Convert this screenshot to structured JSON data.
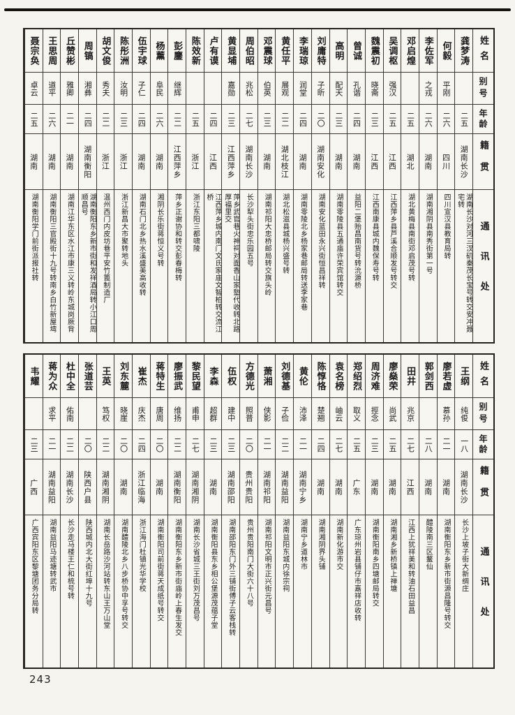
{
  "page_number": "243",
  "row_headers": [
    "姓名",
    "别号",
    "年龄",
    "籍贯",
    "通讯处"
  ],
  "tables": [
    {
      "people": [
        {
          "name": "龚梦涛",
          "alias": "",
          "age": "二五",
          "native": "湖南长沙",
          "address": "湖南长沙对河三汊矶秦茂长宝号转交安冲聂宅转"
        },
        {
          "name": "何毅",
          "alias": "平刚",
          "age": "二六",
          "native": "四川",
          "address": "四川宣汉县教育局转"
        },
        {
          "name": "李佐军",
          "alias": "之戎",
          "age": "二六",
          "native": "湖南",
          "address": "湖南湘阴县南秀街第一号"
        },
        {
          "name": "邓启煌",
          "alias": "",
          "age": "二五",
          "native": "湖北",
          "address": "湖北黄梅县南街邓启茂号转"
        },
        {
          "name": "吴调枢",
          "alias": "强汉",
          "age": "二五",
          "native": "江西",
          "address": "江西萍乡县芦溪合顺发号转交"
        },
        {
          "name": "魏震初",
          "alias": "晓斋",
          "age": "二三",
          "native": "江西",
          "address": "江西南康县城内魏保寿号转"
        },
        {
          "name": "曾诚",
          "alias": "孔谐",
          "age": "二四",
          "native": "湖南",
          "address": "益阳二堡贻昌南货号转沇源桥"
        },
        {
          "name": "高明",
          "alias": "配天",
          "age": "二三",
          "native": "湖南",
          "address": "湖南零陵县五通庙许荣宾馆转交"
        },
        {
          "name": "刘庸特",
          "alias": "子昕",
          "age": "二〇",
          "native": "湖南安化",
          "address": "湖南安化蓝田永兴街恒昌祥转"
        },
        {
          "name": "李瑞琼",
          "alias": "润堂",
          "age": "二四",
          "native": "湖南",
          "address": "湖南零陵北乡杨家巷邮局转送李家巷"
        },
        {
          "name": "黄任平",
          "alias": "展观",
          "age": "二二",
          "native": "湖北枝江",
          "address": "湖北松滋县城杨兴盛号转"
        },
        {
          "name": "邓震球",
          "alias": "伯英",
          "age": "二三",
          "native": "湖南",
          "address": "湖南祁阳大忠桥邮局转交旗头岭"
        },
        {
          "name": "周伯昭",
          "alias": "兆松",
          "age": "二七",
          "native": "湖南长沙",
          "address": "长沙犁头街忠乐园五号"
        },
        {
          "name": "黄显埔",
          "alias": "嘉勋",
          "age": "二三",
          "native": "江西萍乡",
          "address": "萍乡武官巷火神祠对面香山家塾代收转北路厚福里交"
        },
        {
          "name": "卢有谟",
          "alias": "",
          "age": "二四",
          "native": "江西",
          "address": "江西萍乡城内南门文氏家庙文智柏转交流江桥"
        },
        {
          "name": "陈效新",
          "alias": "",
          "age": "二五",
          "native": "浙江",
          "address": "浙江东阳三都啸陵"
        },
        {
          "name": "彭鏖",
          "alias": "继辉",
          "age": "二二",
          "native": "江西萍乡",
          "address": "萍乡正谢协和转交彭春梅转"
        },
        {
          "name": "杨薰",
          "alias": "阜民",
          "age": "二六",
          "native": "湖南",
          "address": "湘阴长乐街蒋恒义号转"
        },
        {
          "name": "伍宇球",
          "alias": "子仁",
          "age": "二四",
          "native": "湖南",
          "address": "湖南石门北乡热水溪盛美高收转"
        },
        {
          "name": "陈彤洲",
          "alias": "汝明",
          "age": "二三",
          "native": "浙江",
          "address": "浙江新昌大市聚转地头"
        },
        {
          "name": "胡文俊",
          "alias": "秀夫",
          "age": "二二",
          "native": "浙江",
          "address": "温州西门内皮坊巷平安竹篦制造厂"
        },
        {
          "name": "周镐",
          "alias": "湘彝",
          "age": "二四",
          "native": "湖南衡阳",
          "address": "湖南衡阳东乡新市街和发祥酒局转小江口周顺昌号"
        },
        {
          "name": "丘赞彬",
          "alias": "雅卿",
          "age": "二一",
          "native": "湖南",
          "address": "湖南江华东区水江市康三义转岭东城岗厥背"
        },
        {
          "name": "王思周",
          "alias": "道平",
          "age": "二六",
          "native": "湖南",
          "address": "湖南衡阳三官殿街十九号转南乡白竹新屋塆"
        },
        {
          "name": "聂宗奂",
          "alias": "卓云",
          "age": "二五",
          "native": "湖南",
          "address": "湖南衡阳学门前街派报社转"
        }
      ]
    },
    {
      "people": [
        {
          "name": "王纲",
          "alias": "纯俊",
          "age": "一八",
          "native": "湖南长沙",
          "address": "长沙上坡子街大新绸庄"
        },
        {
          "name": "廖若虚",
          "alias": "慕孙",
          "age": "二一",
          "native": "湖南",
          "address": "湖南衡阳东乡新市街源昌隆号转交"
        },
        {
          "name": "郭剑西",
          "alias": "",
          "age": "二八",
          "native": "湖南",
          "address": "醴陵南三区鳌仙"
        },
        {
          "name": "田井",
          "alias": "兆京",
          "age": "二七",
          "native": "江西",
          "address": "江西上犹祥美和转油石田益昌"
        },
        {
          "name": "廖燊荣",
          "alias": "尚武",
          "age": "二五",
          "native": "湖南",
          "address": "湖南湘乡新桥镇上禅塘"
        },
        {
          "name": "周济难",
          "alias": "挳念",
          "age": "二三",
          "native": "湖南",
          "address": "湖南衡阳南乡四塘邮局转交"
        },
        {
          "name": "郑绍烈",
          "alias": "取义",
          "age": "二五",
          "native": "广东",
          "address": "广东琼州岩县铺仔市嘉祥店收转"
        },
        {
          "name": "袁名榜",
          "alias": "岫云",
          "age": "二七",
          "native": "湖南",
          "address": "湖南新化游市交"
        },
        {
          "name": "陈惇恪",
          "alias": "楚翘",
          "age": "二四",
          "native": "湖南",
          "address": "湖南湘阴界头铺"
        },
        {
          "name": "黄伦",
          "alias": "沛泽",
          "age": "二一",
          "native": "湖南宁乡",
          "address": "湖南宁乡道林市"
        },
        {
          "name": "刘德基",
          "alias": "子俭",
          "age": "二二",
          "native": "湖南益阳",
          "address": "湖南益阳东城内徐宗祠"
        },
        {
          "name": "萧湘",
          "alias": "侠影",
          "age": "二一",
          "native": "湖南祁阳",
          "address": "湖南祁阳文明市正兴街元昌号"
        },
        {
          "name": "方德光",
          "alias": "照普",
          "age": "二〇",
          "native": "贵州贵阳",
          "address": "贵州贵阳南门大街六十八号"
        },
        {
          "name": "伍权",
          "alias": "建中",
          "age": "二三",
          "native": "湖南邵阳",
          "address": "湖南邵阳东门外三铺街傅子云客栈转"
        },
        {
          "name": "李森",
          "alias": "超群",
          "age": "二三",
          "native": "湖南",
          "address": "湖南衡阳县东乡相公堡源茂蕴子堂"
        },
        {
          "name": "黎民望",
          "alias": "甫申",
          "age": "二七",
          "native": "湖南湘阴",
          "address": "湖南长沙省城三王街刘万茂昌号"
        },
        {
          "name": "廖振武",
          "alias": "维扬",
          "age": "二二",
          "native": "湖南衡阳",
          "address": "湖南衡阳东乡新市街庙岭上春生发交"
        },
        {
          "name": "蒋特生",
          "alias": "唐周",
          "age": "二〇",
          "native": "湖南",
          "address": "湖南衡阳司前街蒋天成纸号转交"
        },
        {
          "name": "崔杰",
          "alias": "庆杰",
          "age": "二四",
          "native": "浙江临海",
          "address": "浙江海门杜镇光华学校"
        },
        {
          "name": "刘东麓",
          "alias": "晓崖",
          "age": "二〇",
          "native": "湖南",
          "address": "湖南醴陵北乡八步桥协中孚号转交"
        },
        {
          "name": "王英",
          "alias": "笃权",
          "age": "二二",
          "native": "湖南湘阴",
          "address": "湖南长岳路沙河站转东山王万山堂"
        },
        {
          "name": "张道芸",
          "alias": "",
          "age": "二〇",
          "native": "陕西户县",
          "address": "陕西城内北大街红埠十九号"
        },
        {
          "name": "杜中全",
          "alias": "佑南",
          "age": "二二",
          "native": "湖南长沙",
          "address": "长沙走马楼王仁和梳号转"
        },
        {
          "name": "蒋为众",
          "alias": "求平",
          "age": "二一",
          "native": "湖南益阳",
          "address": "湖南益阳马迹塘转武市"
        },
        {
          "name": "韦耀",
          "alias": "",
          "age": "二三",
          "native": "广西",
          "address": "广西宾阳东区黎塘团务分局转"
        }
      ]
    }
  ]
}
